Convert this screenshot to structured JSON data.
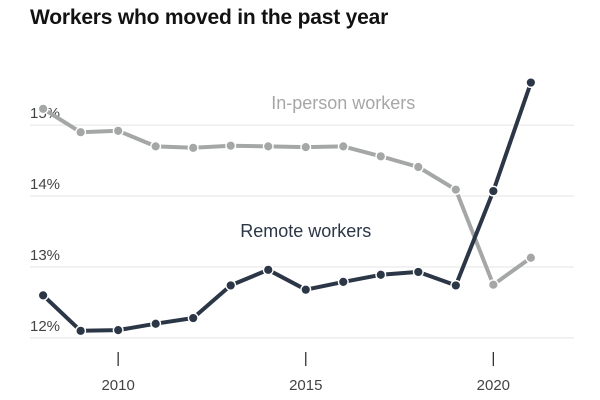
{
  "chart_data": {
    "type": "line",
    "title": "Workers who moved in the past year",
    "xlabel": "",
    "ylabel": "",
    "x": [
      2008,
      2009,
      2010,
      2011,
      2012,
      2013,
      2014,
      2015,
      2016,
      2017,
      2018,
      2019,
      2020,
      2021
    ],
    "xlim": [
      2007.65,
      2022.15
    ],
    "ylim": [
      11.9,
      16.2
    ],
    "x_ticks": [
      {
        "value": 2010,
        "label": "2010"
      },
      {
        "value": 2015,
        "label": "2015"
      },
      {
        "value": 2020,
        "label": "2020"
      }
    ],
    "y_ticks": [
      {
        "value": 12,
        "label": "12%"
      },
      {
        "value": 13,
        "label": "13%"
      },
      {
        "value": 14,
        "label": "14%"
      },
      {
        "value": 15,
        "label": "15%"
      }
    ],
    "grid": "horizontal",
    "series": [
      {
        "name": "In-person workers",
        "color": "#a5a7a6",
        "values": [
          15.23,
          14.9,
          14.92,
          14.7,
          14.68,
          14.71,
          14.7,
          14.69,
          14.7,
          14.56,
          14.41,
          14.09,
          12.75,
          13.13
        ],
        "label_at": {
          "x": 2016.0,
          "y": 15.23
        }
      },
      {
        "name": "Remote workers",
        "color": "#2b3746",
        "values": [
          12.6,
          12.1,
          12.11,
          12.2,
          12.28,
          12.74,
          12.96,
          12.68,
          12.79,
          12.89,
          12.93,
          12.74,
          14.07,
          15.6
        ],
        "label_at": {
          "x": 2015.0,
          "y": 13.42
        }
      }
    ]
  }
}
